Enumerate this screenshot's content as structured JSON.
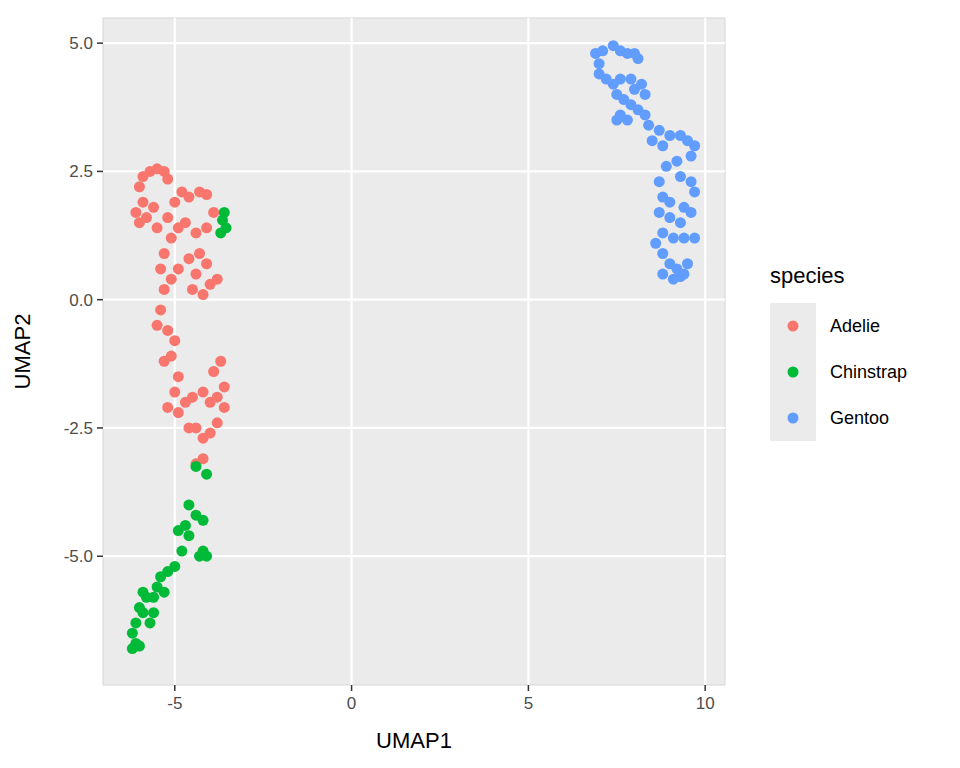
{
  "chart_data": {
    "type": "scatter",
    "x_label": "UMAP1",
    "y_label": "UMAP2",
    "legend_title": "species",
    "xlim": [
      -7.03,
      10.56
    ],
    "ylim": [
      -7.51,
      5.49
    ],
    "xticks": [
      -5,
      0,
      5,
      10
    ],
    "yticks": [
      {
        "value": 5,
        "label": "5.0"
      },
      {
        "value": 2.5,
        "label": "2.5"
      },
      {
        "value": 0,
        "label": "0.0"
      },
      {
        "value": -2.5,
        "label": "-2.5"
      },
      {
        "value": -5,
        "label": "-5.0"
      }
    ],
    "grid": true,
    "legend": "right",
    "marker": "circle",
    "series": [
      {
        "name": "Adelie",
        "color": "#F8766D",
        "x": [
          -5.9,
          -5.7,
          -5.5,
          -5.3,
          -5.2,
          -6.0,
          -5.9,
          -6.1,
          -6.0,
          -5.8,
          -5.6,
          -5.5,
          -5.2,
          -5.0,
          -4.8,
          -4.6,
          -4.3,
          -4.1,
          -3.9,
          -4.1,
          -4.4,
          -4.7,
          -4.9,
          -5.1,
          -5.3,
          -5.4,
          -5.1,
          -5.3,
          -4.9,
          -4.6,
          -4.3,
          -4.1,
          -4.4,
          -4.0,
          -4.2,
          -4.5,
          -3.8,
          -5.4,
          -5.5,
          -5.2,
          -5.0,
          -5.1,
          -5.3,
          -4.9,
          -5.0,
          -5.2,
          -4.9,
          -4.7,
          -4.5,
          -4.2,
          -4.0,
          -3.8,
          -3.6,
          -3.7,
          -3.9,
          -3.6,
          -3.8,
          -4.0,
          -4.2,
          -4.4,
          -4.6,
          -4.2,
          -4.4
        ],
        "values": [
          2.4,
          2.5,
          2.55,
          2.5,
          2.35,
          2.2,
          1.9,
          1.7,
          1.5,
          1.6,
          1.8,
          1.4,
          1.6,
          1.9,
          2.1,
          2.0,
          2.1,
          2.05,
          1.7,
          1.4,
          1.3,
          1.5,
          1.4,
          1.2,
          0.9,
          0.6,
          0.4,
          0.2,
          0.6,
          0.8,
          0.9,
          0.7,
          0.5,
          0.3,
          0.1,
          0.2,
          0.4,
          -0.2,
          -0.5,
          -0.6,
          -0.8,
          -1.1,
          -1.2,
          -1.5,
          -1.8,
          -2.1,
          -2.2,
          -2.0,
          -1.9,
          -1.8,
          -2.0,
          -1.9,
          -1.7,
          -1.2,
          -1.4,
          -2.1,
          -2.4,
          -2.6,
          -2.7,
          -2.5,
          -2.5,
          -3.1,
          -3.2
        ]
      },
      {
        "name": "Chinstrap",
        "color": "#00BA38",
        "x": [
          -3.6,
          -3.65,
          -3.55,
          -3.7,
          -4.4,
          -4.1,
          -4.6,
          -4.4,
          -4.2,
          -4.7,
          -4.9,
          -4.6,
          -4.2,
          -4.3,
          -4.1,
          -4.8,
          -5.0,
          -5.2,
          -5.4,
          -5.5,
          -5.3,
          -5.6,
          -5.8,
          -5.9,
          -5.6,
          -5.7,
          -5.9,
          -6.0,
          -6.1,
          -6.2,
          -6.1,
          -6.2,
          -6.0
        ],
        "values": [
          1.7,
          1.55,
          1.4,
          1.3,
          -3.25,
          -3.4,
          -4.0,
          -4.2,
          -4.3,
          -4.4,
          -4.5,
          -4.6,
          -4.9,
          -5.0,
          -5.0,
          -4.9,
          -5.2,
          -5.3,
          -5.4,
          -5.6,
          -5.7,
          -5.8,
          -5.8,
          -5.7,
          -6.1,
          -6.3,
          -6.1,
          -6.0,
          -6.3,
          -6.5,
          -6.7,
          -6.8,
          -6.75
        ]
      },
      {
        "name": "Gentoo",
        "color": "#619CFF",
        "x": [
          6.9,
          7.1,
          7.4,
          7.6,
          7.8,
          8.0,
          8.1,
          7.0,
          7.0,
          7.2,
          7.4,
          7.6,
          7.9,
          8.0,
          8.2,
          8.3,
          7.5,
          7.7,
          7.9,
          8.1,
          8.3,
          7.6,
          7.8,
          7.5,
          8.4,
          8.7,
          8.5,
          8.8,
          9.0,
          9.3,
          9.5,
          9.7,
          9.6,
          9.2,
          8.9,
          9.3,
          9.6,
          9.7,
          8.7,
          8.8,
          9.0,
          9.4,
          9.6,
          9.3,
          9.0,
          8.7,
          8.8,
          8.6,
          9.1,
          9.4,
          9.7,
          8.8,
          9.0,
          9.2,
          9.4,
          9.1,
          9.3,
          9.5,
          8.8
        ],
        "values": [
          4.8,
          4.85,
          4.95,
          4.85,
          4.8,
          4.8,
          4.7,
          4.6,
          4.4,
          4.3,
          4.2,
          4.3,
          4.3,
          4.1,
          4.2,
          4.0,
          4.0,
          3.9,
          3.8,
          3.7,
          3.6,
          3.6,
          3.5,
          3.5,
          3.4,
          3.3,
          3.1,
          3.0,
          3.2,
          3.2,
          3.1,
          3.0,
          2.8,
          2.7,
          2.6,
          2.4,
          2.3,
          2.1,
          2.3,
          2.0,
          1.9,
          1.8,
          1.7,
          1.5,
          1.6,
          1.7,
          1.3,
          1.1,
          1.2,
          1.2,
          1.2,
          0.9,
          0.7,
          0.6,
          0.5,
          0.4,
          0.45,
          0.7,
          0.5
        ]
      }
    ]
  }
}
